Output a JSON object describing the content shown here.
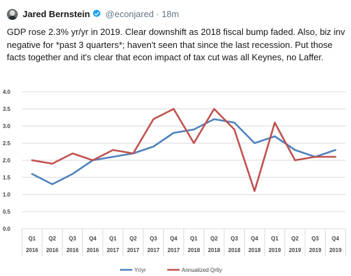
{
  "tweet": {
    "author_name": "Jared Bernstein",
    "handle": "@econjared",
    "separator": "·",
    "time": "18m",
    "text": "GDP rose 2.3% yr/yr in 2019. Clear downshift as 2018 fiscal bump faded. Also, biz inv negative for *past 3 quarters*; haven't seen that since the last recession. Put those facts together and it's clear that econ impact of tax cut was all Keynes, no Laffer."
  },
  "colors": {
    "verified": "#1da1f2",
    "series_yr": "#4f81bd",
    "series_annual": "#c0504d",
    "grid": "#d9d9d9"
  },
  "chart_data": {
    "type": "line",
    "title": "",
    "xlabel": "",
    "ylabel": "",
    "ylim": [
      0,
      4
    ],
    "yticks": [
      "0.0",
      "0.5",
      "1.0",
      "1.5",
      "2.0",
      "2.5",
      "3.0",
      "3.5",
      "4.0"
    ],
    "categories": [
      {
        "q": "Q1",
        "year": "2016"
      },
      {
        "q": "Q2",
        "year": "2016"
      },
      {
        "q": "Q3",
        "year": "2016"
      },
      {
        "q": "Q4",
        "year": "2016"
      },
      {
        "q": "Q1",
        "year": "2017"
      },
      {
        "q": "Q2",
        "year": "2017"
      },
      {
        "q": "Q3",
        "year": "2017"
      },
      {
        "q": "Q4",
        "year": "2017"
      },
      {
        "q": "Q1",
        "year": "2018"
      },
      {
        "q": "Q2",
        "year": "2018"
      },
      {
        "q": "Q3",
        "year": "2018"
      },
      {
        "q": "Q4",
        "year": "2018"
      },
      {
        "q": "Q1",
        "year": "2019"
      },
      {
        "q": "Q2",
        "year": "2019"
      },
      {
        "q": "Q3",
        "year": "2019"
      },
      {
        "q": "Q4",
        "year": "2019"
      }
    ],
    "series": [
      {
        "name": "Yr/yr",
        "values": [
          1.6,
          1.3,
          1.6,
          2.0,
          2.1,
          2.2,
          2.4,
          2.8,
          2.9,
          3.2,
          3.1,
          2.5,
          2.7,
          2.3,
          2.1,
          2.3
        ]
      },
      {
        "name": "Annualized Qrtly",
        "values": [
          2.0,
          1.9,
          2.2,
          2.0,
          2.3,
          2.2,
          3.2,
          3.5,
          2.5,
          3.5,
          2.9,
          1.1,
          3.1,
          2.0,
          2.1,
          2.1
        ]
      }
    ],
    "grid": true,
    "legend_position": "bottom"
  }
}
